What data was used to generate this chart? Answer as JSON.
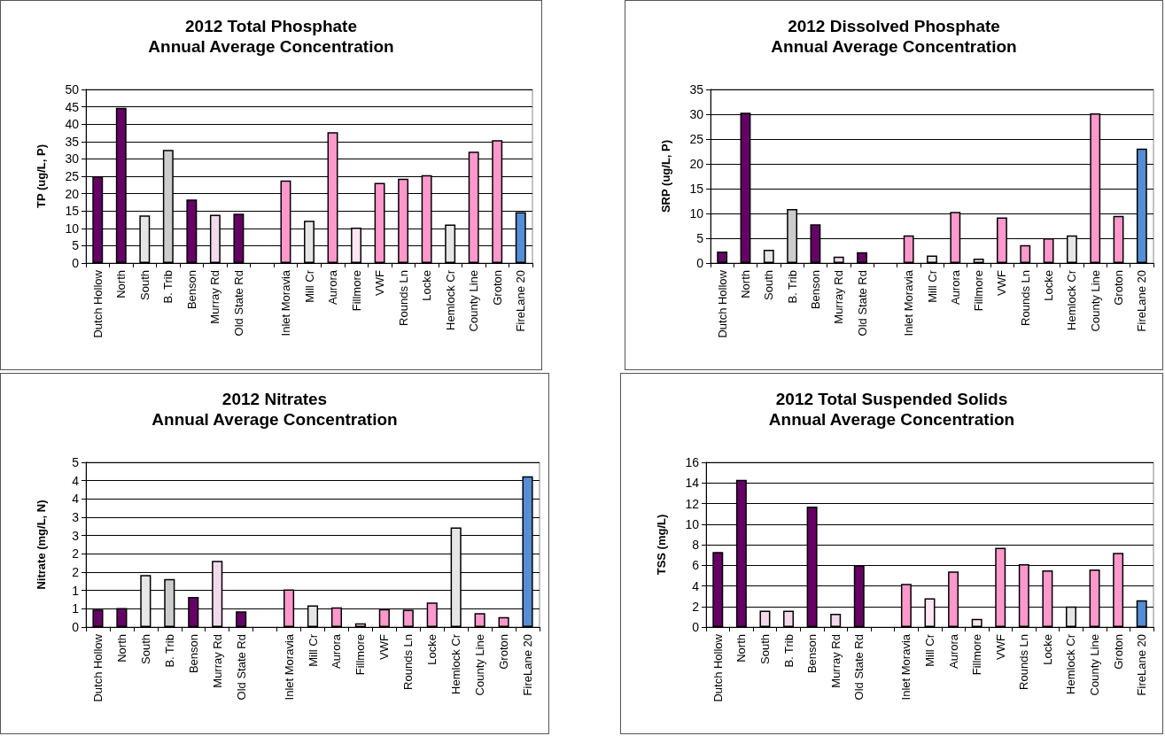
{
  "chart_data": [
    {
      "type": "bar",
      "title": "2012 Total Phosphate",
      "subtitle": "Annual Average Concentration",
      "ylabel": "TP (ug/L, P)",
      "categories": [
        "Dutch Hollow",
        "North",
        "South",
        "B. Trib",
        "Benson",
        "Murray Rd",
        "Old State Rd",
        null,
        "Inlet Moravia",
        "Mill Cr",
        "Aurora",
        "Fillmore",
        "VWF",
        "Rounds Ln",
        "Locke",
        "Hemlock Cr",
        "County Line",
        "Groton",
        "FireLane 20"
      ],
      "values": [
        25.0,
        44.7,
        13.7,
        32.6,
        18.3,
        13.9,
        14.2,
        null,
        23.8,
        12.2,
        37.7,
        10.2,
        23.1,
        24.3,
        25.3,
        11.1,
        32.1,
        35.4,
        14.7
      ],
      "colors": [
        "#660066",
        "#660066",
        "#e6e6e6",
        "#cccccc",
        "#660066",
        "#f2d9ec",
        "#660066",
        null,
        "#ff99cc",
        "#e6e6e6",
        "#ff99cc",
        "#ffe5f2",
        "#ff99cc",
        "#ff99cc",
        "#ff99cc",
        "#e6e6e6",
        "#ff99cc",
        "#ff99cc",
        "#558ed5"
      ],
      "ylim": [
        0,
        50
      ],
      "yticks": [
        0,
        5,
        10,
        15,
        20,
        25,
        30,
        35,
        40,
        45,
        50
      ],
      "grid": "y"
    },
    {
      "type": "bar",
      "title": "2012 Dissolved Phosphate",
      "subtitle": "Annual Average Concentration",
      "ylabel": "SRP (ug/L, P)",
      "categories": [
        "Dutch Hollow",
        "North",
        "South",
        "B. Trib",
        "Benson",
        "Murray Rd",
        "Old State Rd",
        null,
        "Inlet Moravia",
        "Mill Cr",
        "Aurora",
        "Fillmore",
        "VWF",
        "Rounds Ln",
        "Locke",
        "Hemlock Cr",
        "County Line",
        "Groton",
        "FireLane 20"
      ],
      "values": [
        2.3,
        30.3,
        2.7,
        10.9,
        7.8,
        1.3,
        2.2,
        null,
        5.6,
        1.5,
        10.3,
        0.9,
        9.2,
        3.6,
        5.0,
        5.6,
        30.2,
        9.5,
        23.1
      ],
      "colors": [
        "#660066",
        "#660066",
        "#e6e6e6",
        "#cccccc",
        "#660066",
        "#f2d9ec",
        "#660066",
        null,
        "#ff99cc",
        "#e6e6e6",
        "#ff99cc",
        "#ffe5f2",
        "#ff99cc",
        "#ff99cc",
        "#ff99cc",
        "#e6e6e6",
        "#ff99cc",
        "#ff99cc",
        "#558ed5"
      ],
      "ylim": [
        0,
        35
      ],
      "yticks": [
        0,
        5,
        10,
        15,
        20,
        25,
        30,
        35
      ],
      "grid": "y"
    },
    {
      "type": "bar",
      "title": "2012 Nitrates",
      "subtitle": "Annual Average Concentration",
      "ylabel": "Nitrate (mg/L, N)",
      "categories": [
        "Dutch Hollow",
        "North",
        "South",
        "B. Trib",
        "Benson",
        "Murray Rd",
        "Old State Rd",
        null,
        "Inlet Moravia",
        "Mill Cr",
        "Aurora",
        "Fillmore",
        "VWF",
        "Rounds Ln",
        "Locke",
        "Hemlock Cr",
        "County Line",
        "Groton",
        "FireLane 20"
      ],
      "values": [
        0.48,
        0.52,
        1.42,
        1.31,
        0.82,
        1.81,
        0.43,
        null,
        1.03,
        0.59,
        0.54,
        0.1,
        0.49,
        0.47,
        0.67,
        2.72,
        0.38,
        0.27,
        4.12
      ],
      "colors": [
        "#660066",
        "#660066",
        "#e6e6e6",
        "#cccccc",
        "#660066",
        "#f2d9ec",
        "#660066",
        null,
        "#ff99cc",
        "#e6e6e6",
        "#ff99cc",
        "#ffe5f2",
        "#ff99cc",
        "#ff99cc",
        "#ff99cc",
        "#e6e6e6",
        "#ff99cc",
        "#ff99cc",
        "#558ed5"
      ],
      "ylim": [
        0,
        4.5
      ],
      "yticks": [
        0,
        {
          "value": 0.5,
          "label": "1"
        },
        1,
        {
          "value": 1.5,
          "label": "2"
        },
        2,
        {
          "value": 2.5,
          "label": "3"
        },
        3,
        {
          "value": 3.5,
          "label": "4"
        },
        4,
        {
          "value": 4.5,
          "label": "5"
        }
      ],
      "grid": "y"
    },
    {
      "type": "bar",
      "title": "2012 Total Suspended Solids",
      "subtitle": "Annual Average Concentration",
      "ylabel": "TSS (mg/L)",
      "categories": [
        "Dutch Hollow",
        "North",
        "South",
        "B. Trib",
        "Benson",
        "Murray Rd",
        "Old State Rd",
        null,
        "Inlet Moravia",
        "Mill Cr",
        "Aurora",
        "Fillmore",
        "VWF",
        "Rounds Ln",
        "Locke",
        "Hemlock Cr",
        "County Line",
        "Groton",
        "FireLane 20"
      ],
      "values": [
        7.3,
        14.3,
        1.6,
        1.6,
        11.7,
        1.3,
        6.0,
        null,
        4.2,
        2.8,
        5.4,
        0.8,
        7.7,
        6.1,
        5.5,
        2.0,
        5.6,
        7.2,
        2.6
      ],
      "colors": [
        "#660066",
        "#660066",
        "#f2d9ec",
        "#f2d9ec",
        "#660066",
        "#f2d9ec",
        "#660066",
        null,
        "#ff99cc",
        "#ffe5f2",
        "#ff99cc",
        "#ffe5f2",
        "#ff99cc",
        "#ff99cc",
        "#ff99cc",
        "#e6e6e6",
        "#ff99cc",
        "#ff99cc",
        "#558ed5"
      ],
      "ylim": [
        0,
        16
      ],
      "yticks": [
        0,
        2,
        4,
        6,
        8,
        10,
        12,
        14,
        16
      ],
      "grid": "y"
    }
  ]
}
